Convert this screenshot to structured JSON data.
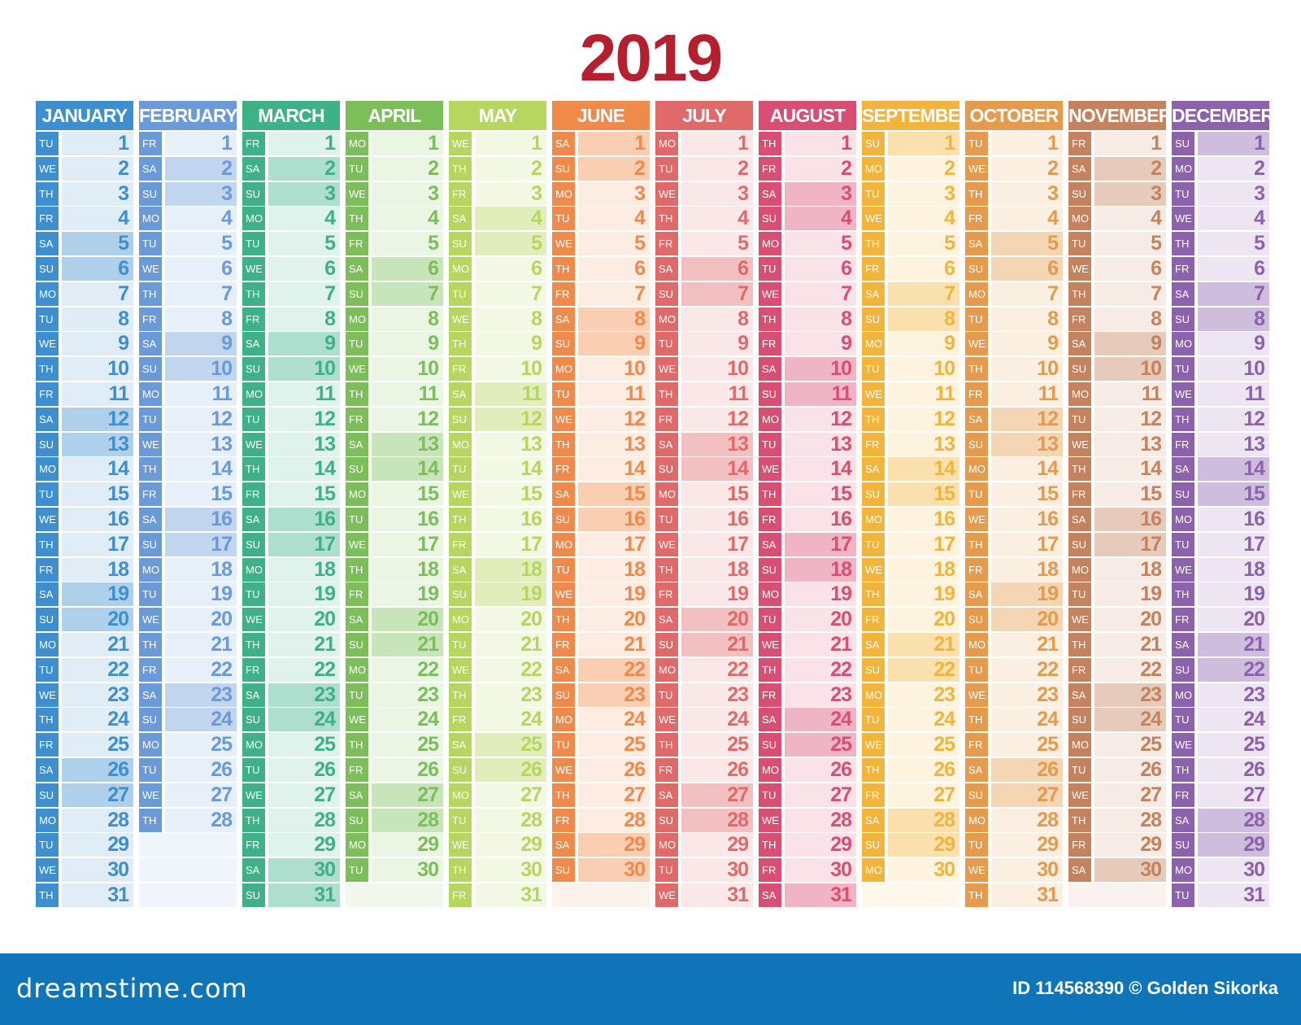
{
  "year": "2019",
  "colors": {
    "year": "#b51f2e",
    "footer": "#0f74b8",
    "months": [
      "#3d8fcf",
      "#6b9ad9",
      "#3fb187",
      "#7cbf5a",
      "#b7d660",
      "#f08a4b",
      "#e06a6a",
      "#d94f73",
      "#f2b43b",
      "#e59a4c",
      "#c4825e",
      "#8d62ad"
    ]
  },
  "day_names": [
    "SU",
    "MO",
    "TU",
    "WE",
    "TH",
    "FR",
    "SA"
  ],
  "months": [
    {
      "name": "JANUARY",
      "days": 31,
      "start": 2
    },
    {
      "name": "FEBRUARY",
      "days": 28,
      "start": 5
    },
    {
      "name": "MARCH",
      "days": 31,
      "start": 5
    },
    {
      "name": "APRIL",
      "days": 30,
      "start": 1
    },
    {
      "name": "MAY",
      "days": 31,
      "start": 3
    },
    {
      "name": "JUNE",
      "days": 30,
      "start": 6
    },
    {
      "name": "JULY",
      "days": 31,
      "start": 1
    },
    {
      "name": "AUGUST",
      "days": 31,
      "start": 4
    },
    {
      "name": "SEPTEMBER",
      "days": 30,
      "start": 0
    },
    {
      "name": "OCTOBER",
      "days": 31,
      "start": 2
    },
    {
      "name": "NOVEMBER",
      "days": 30,
      "start": 5
    },
    {
      "name": "DECEMBER",
      "days": 31,
      "start": 0
    }
  ],
  "footer": {
    "logo": "dreamstime.com",
    "credit": "ID 114568390 © Golden Sikorka"
  }
}
